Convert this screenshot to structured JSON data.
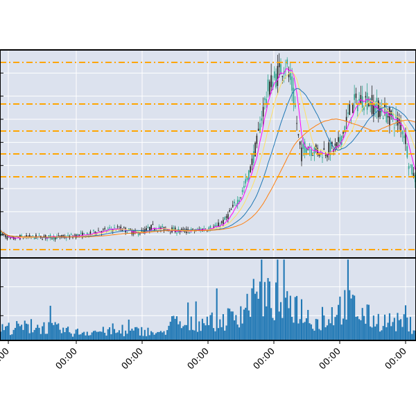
{
  "chart_data": [
    {
      "type": "candlestick",
      "panel": "price",
      "background": "#dce2ee",
      "grid": true,
      "up_color": "#2ca58d",
      "down_color": "#222222",
      "ylim": [
        0,
        100
      ],
      "x_count": 260,
      "price_series": [
        [
          0,
          12
        ],
        [
          6,
          9
        ],
        [
          12,
          10
        ],
        [
          20,
          10
        ],
        [
          30,
          10
        ],
        [
          40,
          10
        ],
        [
          50,
          11
        ],
        [
          55,
          11
        ],
        [
          60,
          13
        ],
        [
          65,
          13
        ],
        [
          70,
          14
        ],
        [
          75,
          14
        ],
        [
          80,
          13
        ],
        [
          85,
          12
        ],
        [
          90,
          13
        ],
        [
          95,
          15
        ],
        [
          100,
          14
        ],
        [
          105,
          14
        ],
        [
          110,
          13
        ],
        [
          120,
          13
        ],
        [
          128,
          14
        ],
        [
          135,
          15
        ],
        [
          140,
          18
        ],
        [
          145,
          24
        ],
        [
          150,
          30
        ],
        [
          155,
          40
        ],
        [
          160,
          55
        ],
        [
          163,
          68
        ],
        [
          166,
          78
        ],
        [
          168,
          83
        ],
        [
          172,
          87
        ],
        [
          175,
          91
        ],
        [
          178,
          94
        ],
        [
          180,
          88
        ],
        [
          182,
          82
        ],
        [
          184,
          72
        ],
        [
          186,
          58
        ],
        [
          188,
          50
        ],
        [
          190,
          54
        ],
        [
          195,
          52
        ],
        [
          200,
          51
        ],
        [
          205,
          52
        ],
        [
          210,
          53
        ],
        [
          212,
          56
        ],
        [
          215,
          63
        ],
        [
          218,
          70
        ],
        [
          221,
          74
        ],
        [
          225,
          76
        ],
        [
          230,
          76
        ],
        [
          233,
          73
        ],
        [
          236,
          72
        ],
        [
          240,
          70
        ],
        [
          245,
          67
        ],
        [
          250,
          64
        ],
        [
          253,
          58
        ],
        [
          255,
          46
        ],
        [
          258,
          40
        ],
        [
          259,
          38
        ]
      ],
      "moving_averages": [
        {
          "name": "",
          "color": "#ff00ff",
          "period": 5
        },
        {
          "name": "",
          "color": "#ffe066",
          "period": 12
        },
        {
          "name": "",
          "color": "#1f77b4",
          "period": 25
        },
        {
          "name": "",
          "color": "#ff7f0e",
          "period": 50
        }
      ],
      "horizontal_levels": {
        "color": "#ffa500",
        "style": "dash-dot",
        "values": [
          4,
          94,
          74,
          61,
          50,
          39
        ]
      }
    },
    {
      "type": "bar",
      "panel": "volume",
      "background": "#dce2ee",
      "bar_color": "#1f77b4",
      "grid": true,
      "ylim": [
        0,
        100
      ],
      "x_tick_labels": [
        "00:00",
        "00:00",
        "00:00",
        "00:00",
        "00:00",
        "00:00",
        "00:00"
      ],
      "volume_profile": [
        [
          0,
          18
        ],
        [
          15,
          20
        ],
        [
          30,
          20
        ],
        [
          45,
          12
        ],
        [
          60,
          14
        ],
        [
          75,
          12
        ],
        [
          90,
          15
        ],
        [
          100,
          8
        ],
        [
          108,
          28
        ],
        [
          115,
          20
        ],
        [
          125,
          30
        ],
        [
          135,
          28
        ],
        [
          145,
          35
        ],
        [
          155,
          55
        ],
        [
          162,
          68
        ],
        [
          170,
          60
        ],
        [
          178,
          48
        ],
        [
          185,
          55
        ],
        [
          190,
          40
        ],
        [
          200,
          25
        ],
        [
          210,
          48
        ],
        [
          218,
          55
        ],
        [
          225,
          40
        ],
        [
          235,
          30
        ],
        [
          245,
          28
        ],
        [
          255,
          25
        ],
        [
          259,
          20
        ]
      ]
    }
  ]
}
